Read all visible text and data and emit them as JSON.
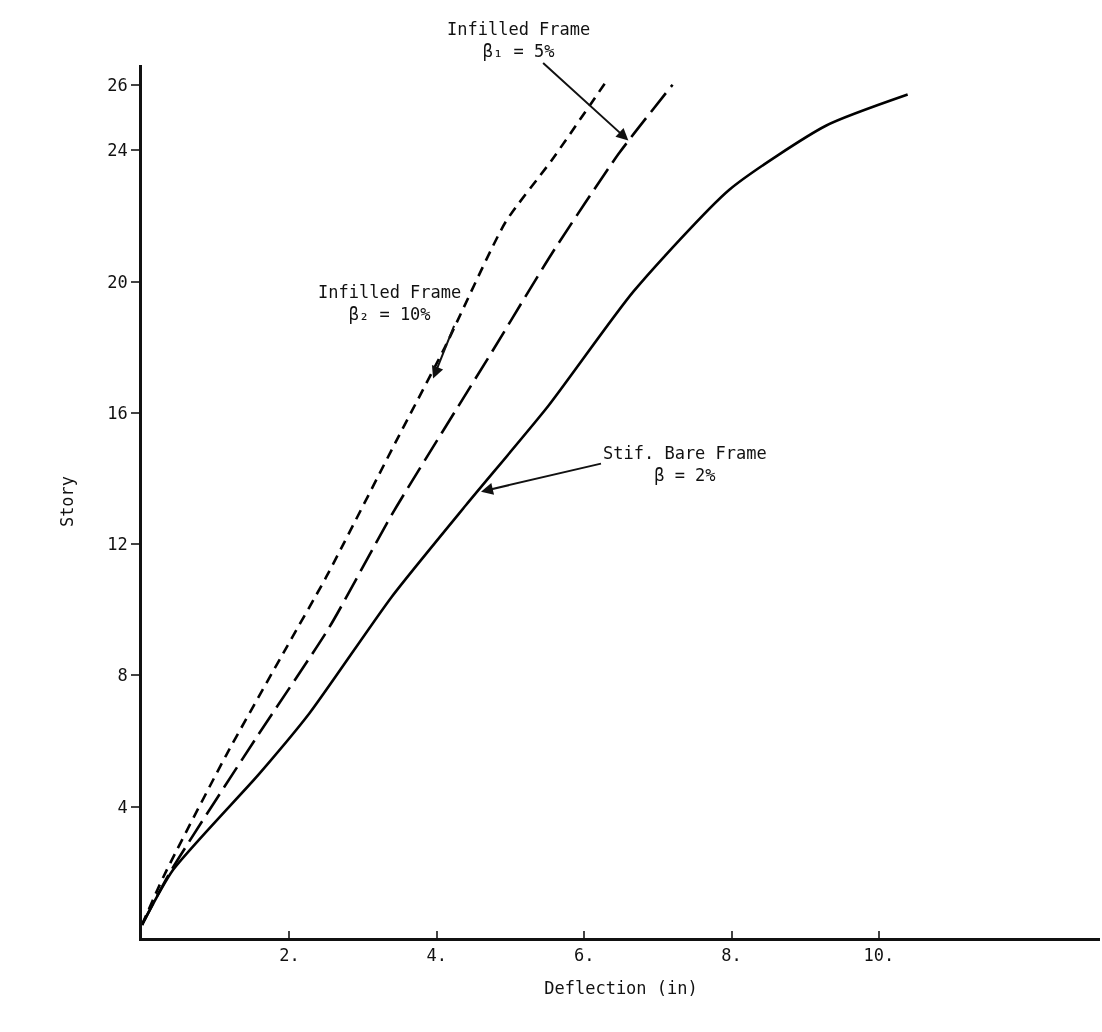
{
  "chart_data": {
    "type": "line",
    "xlabel": "Deflection (in)",
    "ylabel": "Story",
    "xlim": [
      0,
      13
    ],
    "ylim": [
      0,
      26.6
    ],
    "xticks": [
      {
        "value": 2,
        "label": "2."
      },
      {
        "value": 4,
        "label": "4."
      },
      {
        "value": 6,
        "label": "6."
      },
      {
        "value": 8,
        "label": "8."
      },
      {
        "value": 10,
        "label": "10."
      }
    ],
    "yticks": [
      4,
      8,
      12,
      16,
      20,
      24,
      26
    ],
    "grid": false,
    "marker": "none",
    "series": [
      {
        "color": "#000000",
        "line_style": "dashed",
        "x": [
          0,
          0.29,
          1.14,
          1.96,
          2.5,
          3.44,
          4.11,
          4.93,
          5.56,
          6.33
        ],
        "values": [
          0.4,
          1.86,
          5.56,
          8.85,
          11.0,
          15.1,
          18.0,
          21.8,
          23.7,
          26.2
        ]
      },
      {
        "color": "#000000",
        "line_style": "dashed",
        "x": [
          0,
          0.38,
          1.55,
          2.54,
          3.39,
          4.76,
          5.56,
          6.47,
          7.2
        ],
        "values": [
          0.4,
          2.0,
          6.1,
          9.46,
          12.9,
          17.9,
          20.85,
          23.9,
          26.0
        ]
      },
      {
        "color": "#000000",
        "line_style": "solid",
        "x": [
          0,
          0.42,
          1.59,
          2.27,
          3.39,
          4.4,
          5.51,
          6.67,
          7.97,
          9.28,
          10.39
        ],
        "values": [
          0.4,
          2.07,
          5.0,
          6.84,
          10.4,
          13.2,
          16.2,
          19.7,
          22.8,
          24.75,
          25.7
        ]
      }
    ],
    "annotations": [
      {
        "text": "Infilled Frame\nβ₁ = 5%",
        "x": 6.6,
        "y": 24.3
      },
      {
        "text": "Infilled Frame\nβ₂ = 10%",
        "x": 3.95,
        "y": 17.05
      },
      {
        "text": "Stif. Bare Frame\nβ = 2%",
        "x": 4.6,
        "y": 13.6
      }
    ]
  }
}
